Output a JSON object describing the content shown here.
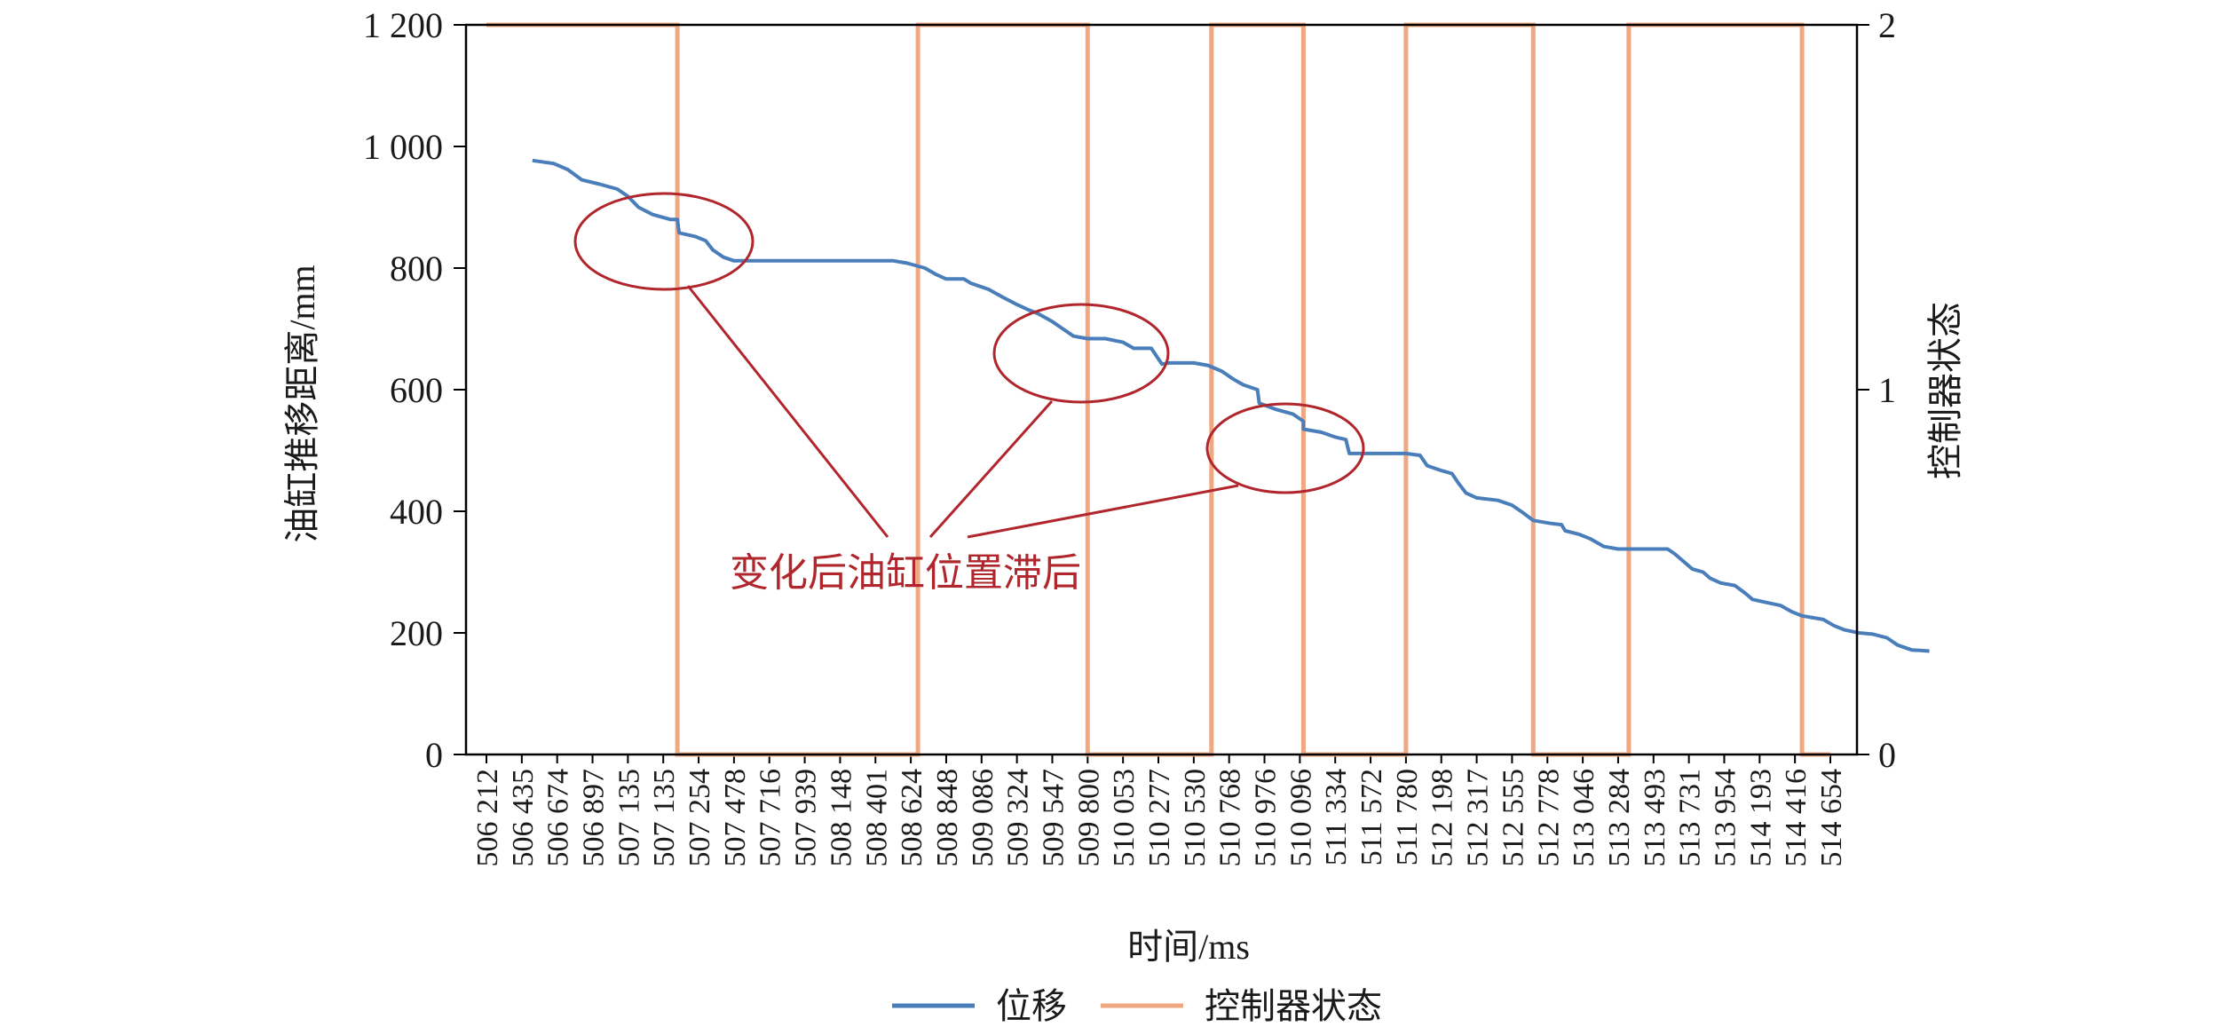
{
  "chart_data": {
    "type": "line",
    "xlabel": "时间/ms",
    "ylabel": "油缸推移距离/mm",
    "y2label": "控制器状态",
    "ylim": [
      0,
      1200
    ],
    "y2lim": [
      0,
      2
    ],
    "y_ticks": [
      "0",
      "200",
      "400",
      "600",
      "800",
      "1 000",
      "1 200"
    ],
    "y2_ticks": [
      "0",
      "1",
      "2"
    ],
    "x_ticks": [
      "506 212",
      "506 435",
      "506 674",
      "506 897",
      "507 135",
      "507 135",
      "507 254",
      "507 478",
      "507 716",
      "507 939",
      "508 148",
      "508 401",
      "508 624",
      "508 848",
      "509 086",
      "509 324",
      "509 547",
      "509 800",
      "510 053",
      "510 277",
      "510 530",
      "510 768",
      "510 976",
      "510 096",
      "511 334",
      "511 572",
      "511 780",
      "512 198",
      "512 317",
      "512 555",
      "512 778",
      "513 046",
      "513 284",
      "513 493",
      "513 731",
      "513 954",
      "514 193",
      "514 416",
      "514 654"
    ],
    "x_index_range": [
      0,
      38
    ],
    "series": [
      {
        "name": "位移",
        "axis": "left",
        "color": "#4a7ebb",
        "points": [
          [
            1.3,
            977
          ],
          [
            1.9,
            972
          ],
          [
            2.3,
            962
          ],
          [
            2.7,
            945
          ],
          [
            3.2,
            938
          ],
          [
            3.7,
            930
          ],
          [
            4.0,
            918
          ],
          [
            4.3,
            900
          ],
          [
            4.7,
            888
          ],
          [
            5.2,
            880
          ],
          [
            5.4,
            880
          ],
          [
            5.45,
            858
          ],
          [
            5.9,
            852
          ],
          [
            6.2,
            845
          ],
          [
            6.4,
            830
          ],
          [
            6.7,
            818
          ],
          [
            7.0,
            812
          ],
          [
            8.0,
            812
          ],
          [
            10.0,
            812
          ],
          [
            11.5,
            812
          ],
          [
            11.9,
            808
          ],
          [
            12.4,
            800
          ],
          [
            12.7,
            790
          ],
          [
            13.0,
            782
          ],
          [
            13.5,
            782
          ],
          [
            13.7,
            775
          ],
          [
            14.2,
            765
          ],
          [
            14.6,
            752
          ],
          [
            15.0,
            740
          ],
          [
            15.3,
            732
          ],
          [
            15.6,
            725
          ],
          [
            16.0,
            712
          ],
          [
            16.3,
            700
          ],
          [
            16.6,
            688
          ],
          [
            17.0,
            684
          ],
          [
            17.5,
            684
          ],
          [
            18.0,
            678
          ],
          [
            18.3,
            668
          ],
          [
            18.8,
            668
          ],
          [
            19.1,
            642
          ],
          [
            19.3,
            644
          ],
          [
            20.0,
            644
          ],
          [
            20.4,
            640
          ],
          [
            20.8,
            630
          ],
          [
            21.1,
            618
          ],
          [
            21.4,
            608
          ],
          [
            21.8,
            600
          ],
          [
            21.85,
            578
          ],
          [
            22.3,
            568
          ],
          [
            22.8,
            560
          ],
          [
            23.1,
            548
          ],
          [
            23.1,
            535
          ],
          [
            23.6,
            530
          ],
          [
            24.0,
            522
          ],
          [
            24.3,
            518
          ],
          [
            24.4,
            495
          ],
          [
            25.0,
            495
          ],
          [
            26.0,
            495
          ],
          [
            26.4,
            492
          ],
          [
            26.6,
            475
          ],
          [
            27.0,
            467
          ],
          [
            27.3,
            462
          ],
          [
            27.5,
            445
          ],
          [
            27.7,
            430
          ],
          [
            28.0,
            422
          ],
          [
            28.6,
            418
          ],
          [
            29.0,
            410
          ],
          [
            29.3,
            398
          ],
          [
            29.6,
            385
          ],
          [
            30.1,
            380
          ],
          [
            30.4,
            378
          ],
          [
            30.5,
            368
          ],
          [
            30.9,
            362
          ],
          [
            31.2,
            355
          ],
          [
            31.6,
            342
          ],
          [
            32.0,
            338
          ],
          [
            33.0,
            338
          ],
          [
            33.4,
            338
          ],
          [
            33.6,
            330
          ],
          [
            33.9,
            315
          ],
          [
            34.1,
            305
          ],
          [
            34.4,
            300
          ],
          [
            34.6,
            290
          ],
          [
            34.9,
            282
          ],
          [
            35.3,
            278
          ],
          [
            35.6,
            265
          ],
          [
            35.8,
            255
          ],
          [
            36.2,
            250
          ],
          [
            36.6,
            245
          ],
          [
            36.9,
            235
          ],
          [
            37.2,
            228
          ],
          [
            37.8,
            222
          ],
          [
            38.1,
            212
          ],
          [
            38.4,
            205
          ],
          [
            38.8,
            200
          ],
          [
            39.2,
            198
          ],
          [
            39.6,
            192
          ],
          [
            39.9,
            180
          ],
          [
            40.3,
            172
          ],
          [
            40.8,
            170
          ]
        ]
      },
      {
        "name": "控制器状态",
        "axis": "right",
        "color": "#f0a882",
        "points": [
          [
            0,
            2
          ],
          [
            5.4,
            2
          ],
          [
            5.4,
            0
          ],
          [
            12.2,
            0
          ],
          [
            12.2,
            2
          ],
          [
            17.0,
            2
          ],
          [
            17.0,
            0
          ],
          [
            20.5,
            0
          ],
          [
            20.5,
            2
          ],
          [
            23.1,
            2
          ],
          [
            23.1,
            0
          ],
          [
            26.0,
            0
          ],
          [
            26.0,
            2
          ],
          [
            29.6,
            2
          ],
          [
            29.6,
            0
          ],
          [
            32.3,
            0
          ],
          [
            32.3,
            2
          ],
          [
            37.2,
            2
          ],
          [
            37.2,
            0
          ],
          [
            38.0,
            0
          ]
        ]
      }
    ],
    "annotation": {
      "text": "变化后油缸位置滞后",
      "color": "#b0262c"
    },
    "legend": {
      "position": "bottom-center"
    },
    "grid": false
  }
}
